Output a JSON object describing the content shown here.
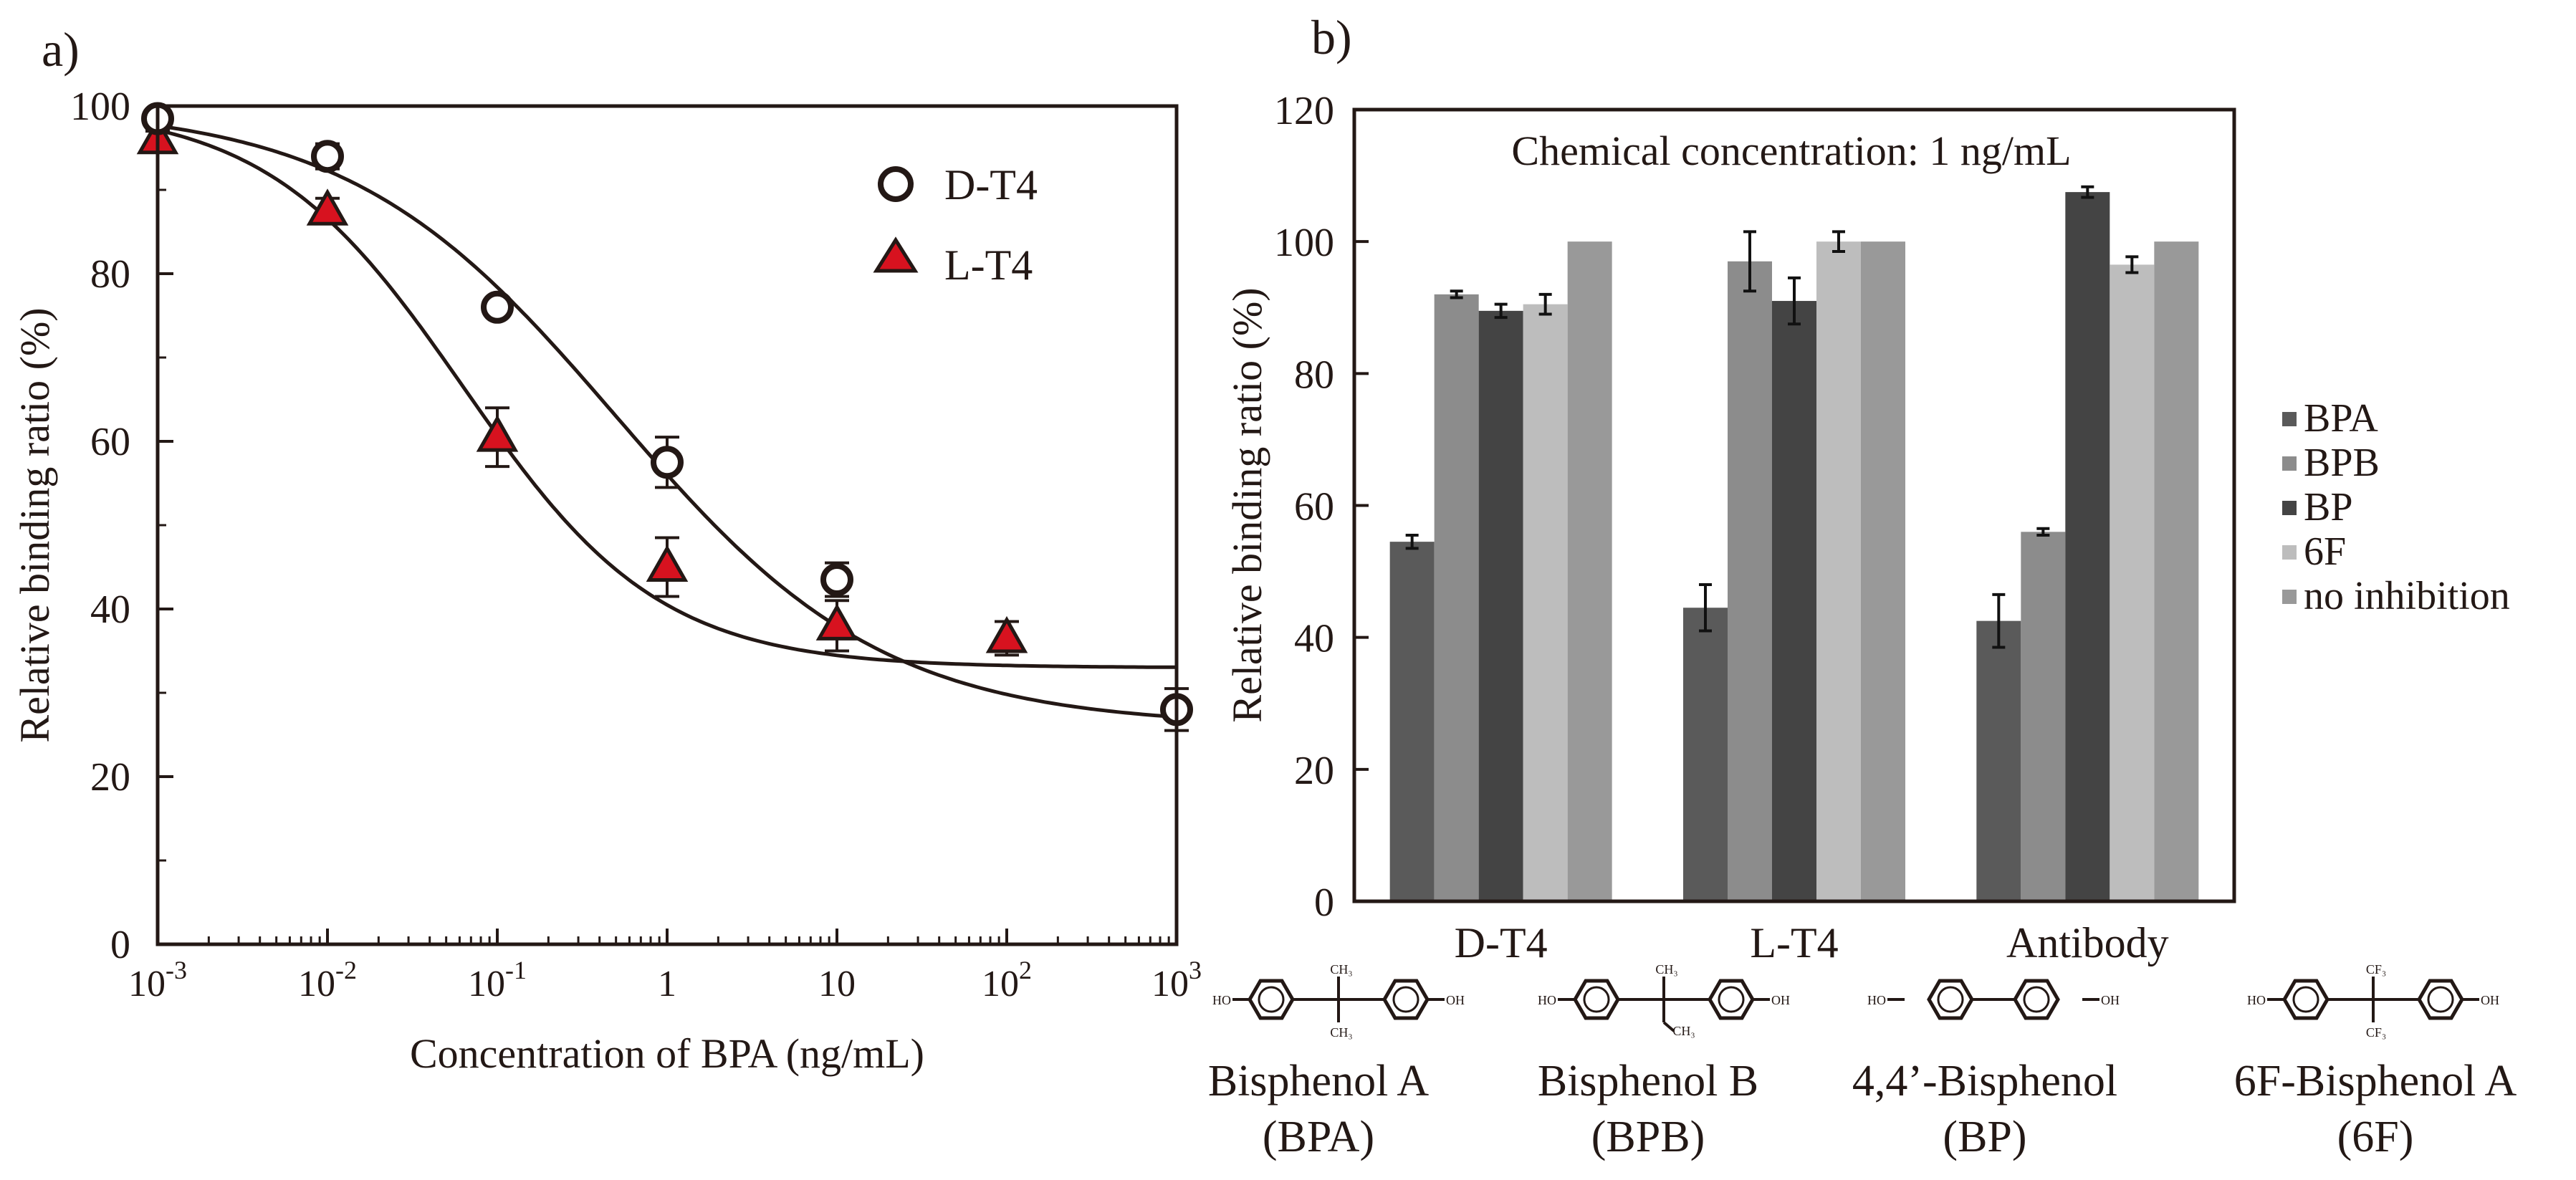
{
  "chart_data": [
    {
      "panel": "a)",
      "type": "scatter",
      "title": "",
      "xlabel": "Concentration of BPA (ng/mL)",
      "ylabel": "Relative binding ratio (%)",
      "xscale": "log",
      "xlim_log10": [
        -3,
        3
      ],
      "ylim": [
        0,
        100
      ],
      "yticks": [
        0,
        20,
        40,
        60,
        80,
        100
      ],
      "xticks": [
        {
          "log": -3,
          "base": "10",
          "exp": "-3",
          "text": ""
        },
        {
          "log": -2,
          "base": "10",
          "exp": "-2",
          "text": ""
        },
        {
          "log": -1,
          "base": "10",
          "exp": "-1",
          "text": ""
        },
        {
          "log": 0,
          "base": "",
          "exp": "",
          "text": "1"
        },
        {
          "log": 1,
          "base": "",
          "exp": "",
          "text": "10"
        },
        {
          "log": 2,
          "base": "10",
          "exp": "2",
          "text": ""
        },
        {
          "log": 3,
          "base": "10",
          "exp": "3",
          "text": ""
        }
      ],
      "legend_position": "top-right",
      "series": [
        {
          "name": "D-T4",
          "marker": "circle",
          "x": [
            0.001,
            0.01,
            0.1,
            1,
            10,
            1000
          ],
          "y": [
            98.5,
            94,
            76,
            57.5,
            43.5,
            28
          ],
          "err": [
            1,
            1.5,
            1,
            3,
            2,
            2.5
          ],
          "fit": {
            "top": 100,
            "bottom": 26,
            "ec50": 0.5,
            "hill": 0.55
          }
        },
        {
          "name": "L-T4",
          "marker": "triangle",
          "color": "#d7121f",
          "x": [
            0.001,
            0.01,
            0.1,
            1,
            10,
            100
          ],
          "y": [
            96,
            87.5,
            60.5,
            45,
            38,
            36.5
          ],
          "err": [
            1,
            1.5,
            3.5,
            3.5,
            3,
            2
          ],
          "fit": {
            "top": 100,
            "bottom": 33,
            "ec50": 0.063,
            "hill": 0.75
          }
        }
      ]
    },
    {
      "panel": "b)",
      "type": "bar",
      "title": "",
      "annotation": "Chemical concentration:  1 ng/mL",
      "xlabel": "",
      "ylabel": "Relative binding ratio (%)",
      "ylim": [
        0,
        120
      ],
      "yticks": [
        0,
        20,
        40,
        60,
        80,
        100,
        120
      ],
      "categories": [
        "D-T4",
        "L-T4",
        "Antibody"
      ],
      "legend_position": "right",
      "series": [
        {
          "name": "BPA",
          "color": "#5a5a5a",
          "values": [
            54.5,
            44.5,
            42.5
          ],
          "err": [
            1,
            3.5,
            4
          ]
        },
        {
          "name": "BPB",
          "color": "#8c8c8c",
          "values": [
            92,
            97,
            56
          ],
          "err": [
            0.5,
            4.5,
            0.5
          ]
        },
        {
          "name": "BP",
          "color": "#444444",
          "values": [
            89.5,
            91,
            107.5
          ],
          "err": [
            1,
            3.5,
            0.8
          ]
        },
        {
          "name": "6F",
          "color": "#bdbdbd",
          "values": [
            90.5,
            100,
            96.5
          ],
          "err": [
            1.5,
            1.5,
            1.2
          ]
        },
        {
          "name": "no inhibition",
          "color": "#999999",
          "values": [
            100,
            100,
            100
          ],
          "err": [
            0,
            0,
            0
          ]
        }
      ]
    }
  ],
  "chemicals": [
    {
      "name": "Bisphenol A",
      "abbr": "(BPA)",
      "group_label": "CH₃"
    },
    {
      "name": "Bisphenol B",
      "abbr": "(BPB)",
      "group_label": "CH₃"
    },
    {
      "name": "4,4’-Bisphenol",
      "abbr": "(BP)",
      "group_label": ""
    },
    {
      "name": "6F-Bisphenol A",
      "abbr": "(6F)",
      "group_label": "CF₃"
    }
  ],
  "structure_labels": {
    "oh_left": "HO",
    "oh_right": "OH"
  }
}
